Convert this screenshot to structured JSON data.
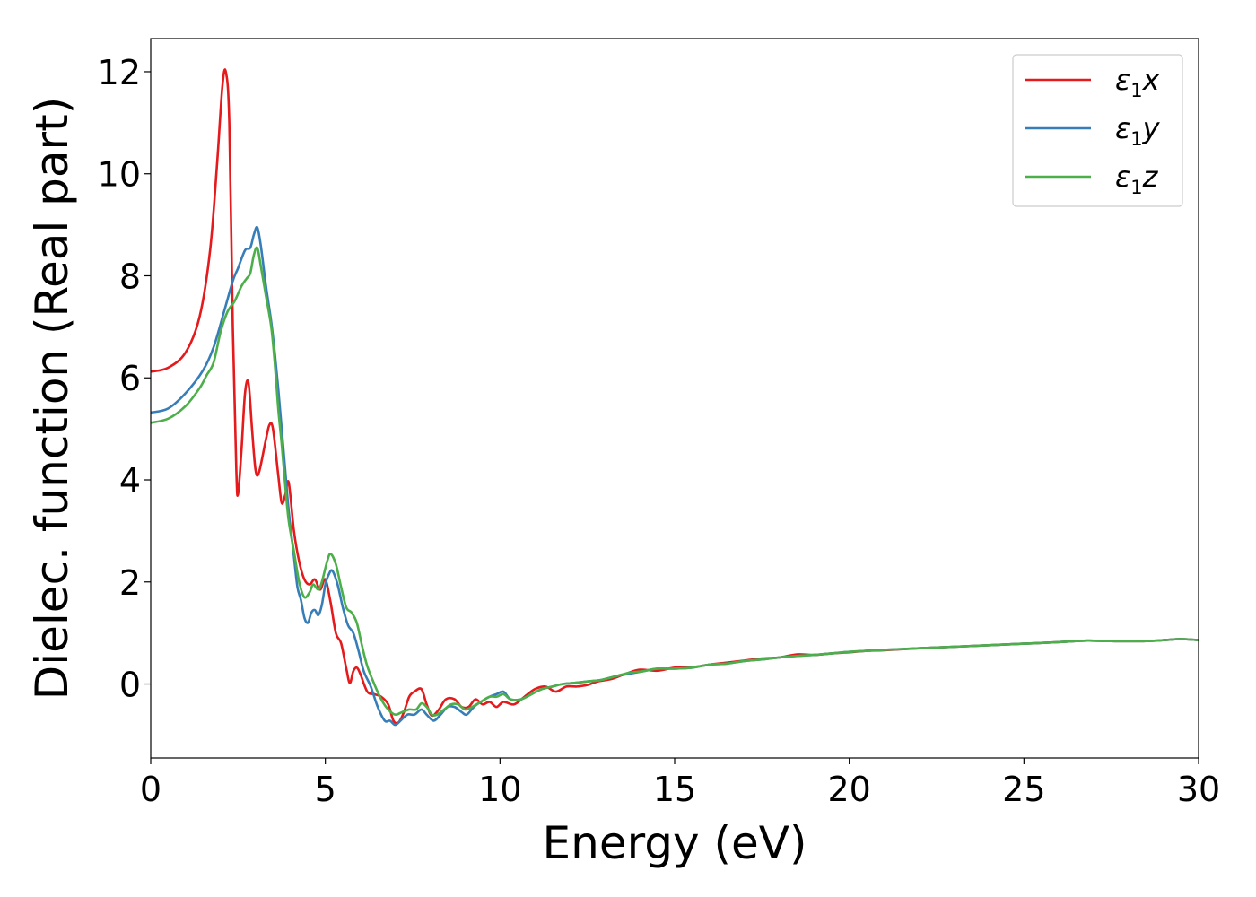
{
  "chart_data": {
    "type": "line",
    "xlabel": "Energy (eV)",
    "ylabel": "Dielec. function (Real part)",
    "xlim": [
      0,
      30
    ],
    "ylim": [
      -1.45,
      12.65
    ],
    "xticks": [
      "0",
      "5",
      "10",
      "15",
      "20",
      "25",
      "30"
    ],
    "yticks": [
      "0",
      "2",
      "4",
      "6",
      "8",
      "10",
      "12"
    ],
    "grid": false,
    "legend_position": "top-right",
    "series": [
      {
        "name": "ε1x",
        "legend": {
          "base": "ε",
          "sub": "1",
          "axis": "x"
        },
        "color": "#e41a1c",
        "points": [
          [
            0,
            6.12
          ],
          [
            0.5,
            6.2
          ],
          [
            1.0,
            6.5
          ],
          [
            1.4,
            7.2
          ],
          [
            1.7,
            8.5
          ],
          [
            1.9,
            10.2
          ],
          [
            2.05,
            11.7
          ],
          [
            2.15,
            12.0
          ],
          [
            2.25,
            11.0
          ],
          [
            2.35,
            7.0
          ],
          [
            2.45,
            4.2
          ],
          [
            2.5,
            3.72
          ],
          [
            2.6,
            4.6
          ],
          [
            2.7,
            5.7
          ],
          [
            2.8,
            5.9
          ],
          [
            2.9,
            5.0
          ],
          [
            3.0,
            4.2
          ],
          [
            3.1,
            4.15
          ],
          [
            3.3,
            4.8
          ],
          [
            3.4,
            5.08
          ],
          [
            3.5,
            5.0
          ],
          [
            3.65,
            4.1
          ],
          [
            3.75,
            3.55
          ],
          [
            3.85,
            3.7
          ],
          [
            3.95,
            3.95
          ],
          [
            4.1,
            3.0
          ],
          [
            4.25,
            2.4
          ],
          [
            4.4,
            2.05
          ],
          [
            4.55,
            1.95
          ],
          [
            4.7,
            2.05
          ],
          [
            4.85,
            1.85
          ],
          [
            5.0,
            2.05
          ],
          [
            5.15,
            1.6
          ],
          [
            5.3,
            1.0
          ],
          [
            5.45,
            0.8
          ],
          [
            5.6,
            0.3
          ],
          [
            5.7,
            0.02
          ],
          [
            5.8,
            0.25
          ],
          [
            5.9,
            0.32
          ],
          [
            6.0,
            0.2
          ],
          [
            6.2,
            -0.15
          ],
          [
            6.4,
            -0.2
          ],
          [
            6.6,
            -0.25
          ],
          [
            6.8,
            -0.4
          ],
          [
            6.95,
            -0.72
          ],
          [
            7.1,
            -0.75
          ],
          [
            7.25,
            -0.55
          ],
          [
            7.4,
            -0.25
          ],
          [
            7.55,
            -0.15
          ],
          [
            7.75,
            -0.1
          ],
          [
            7.9,
            -0.4
          ],
          [
            8.05,
            -0.62
          ],
          [
            8.25,
            -0.5
          ],
          [
            8.45,
            -0.3
          ],
          [
            8.7,
            -0.3
          ],
          [
            8.9,
            -0.45
          ],
          [
            9.1,
            -0.45
          ],
          [
            9.3,
            -0.3
          ],
          [
            9.5,
            -0.4
          ],
          [
            9.7,
            -0.35
          ],
          [
            9.9,
            -0.45
          ],
          [
            10.1,
            -0.35
          ],
          [
            10.4,
            -0.4
          ],
          [
            10.7,
            -0.25
          ],
          [
            11.0,
            -0.1
          ],
          [
            11.3,
            -0.05
          ],
          [
            11.6,
            -0.15
          ],
          [
            11.9,
            -0.05
          ],
          [
            12.2,
            -0.05
          ],
          [
            12.5,
            -0.02
          ],
          [
            12.8,
            0.05
          ],
          [
            13.2,
            0.1
          ],
          [
            13.6,
            0.2
          ],
          [
            14.0,
            0.28
          ],
          [
            14.5,
            0.26
          ],
          [
            15.0,
            0.32
          ],
          [
            15.5,
            0.33
          ],
          [
            16.0,
            0.38
          ],
          [
            16.5,
            0.42
          ],
          [
            17.0,
            0.46
          ],
          [
            17.5,
            0.5
          ],
          [
            18.0,
            0.52
          ],
          [
            18.5,
            0.58
          ],
          [
            19.0,
            0.57
          ],
          [
            19.5,
            0.6
          ],
          [
            20.0,
            0.62
          ],
          [
            20.5,
            0.65
          ],
          [
            21.0,
            0.66
          ],
          [
            22.0,
            0.7
          ],
          [
            23.0,
            0.73
          ],
          [
            24.0,
            0.76
          ],
          [
            25.0,
            0.79
          ],
          [
            26.0,
            0.82
          ],
          [
            26.8,
            0.85
          ],
          [
            27.5,
            0.84
          ],
          [
            28.5,
            0.84
          ],
          [
            29.2,
            0.87
          ],
          [
            29.5,
            0.88
          ],
          [
            30.0,
            0.86
          ]
        ]
      },
      {
        "name": "ε1y",
        "legend": {
          "base": "ε",
          "sub": "1",
          "axis": "y"
        },
        "color": "#377eb8",
        "points": [
          [
            0,
            5.32
          ],
          [
            0.5,
            5.4
          ],
          [
            1.0,
            5.7
          ],
          [
            1.5,
            6.15
          ],
          [
            1.8,
            6.6
          ],
          [
            2.1,
            7.3
          ],
          [
            2.35,
            7.9
          ],
          [
            2.5,
            8.15
          ],
          [
            2.7,
            8.5
          ],
          [
            2.85,
            8.55
          ],
          [
            2.95,
            8.8
          ],
          [
            3.05,
            8.95
          ],
          [
            3.15,
            8.6
          ],
          [
            3.3,
            7.8
          ],
          [
            3.45,
            7.1
          ],
          [
            3.55,
            6.5
          ],
          [
            3.65,
            5.8
          ],
          [
            3.75,
            5.0
          ],
          [
            3.85,
            4.2
          ],
          [
            3.95,
            3.4
          ],
          [
            4.1,
            2.5
          ],
          [
            4.2,
            1.9
          ],
          [
            4.3,
            1.65
          ],
          [
            4.4,
            1.3
          ],
          [
            4.5,
            1.2
          ],
          [
            4.6,
            1.4
          ],
          [
            4.7,
            1.45
          ],
          [
            4.8,
            1.35
          ],
          [
            4.9,
            1.55
          ],
          [
            5.0,
            1.95
          ],
          [
            5.1,
            2.15
          ],
          [
            5.2,
            2.22
          ],
          [
            5.35,
            1.95
          ],
          [
            5.5,
            1.5
          ],
          [
            5.65,
            1.15
          ],
          [
            5.8,
            1.0
          ],
          [
            5.95,
            0.65
          ],
          [
            6.1,
            0.25
          ],
          [
            6.3,
            -0.05
          ],
          [
            6.5,
            -0.45
          ],
          [
            6.7,
            -0.72
          ],
          [
            6.85,
            -0.72
          ],
          [
            7.0,
            -0.8
          ],
          [
            7.15,
            -0.72
          ],
          [
            7.35,
            -0.6
          ],
          [
            7.55,
            -0.6
          ],
          [
            7.75,
            -0.5
          ],
          [
            7.9,
            -0.6
          ],
          [
            8.1,
            -0.72
          ],
          [
            8.3,
            -0.6
          ],
          [
            8.5,
            -0.45
          ],
          [
            8.7,
            -0.45
          ],
          [
            8.9,
            -0.55
          ],
          [
            9.05,
            -0.6
          ],
          [
            9.25,
            -0.45
          ],
          [
            9.45,
            -0.35
          ],
          [
            9.7,
            -0.25
          ],
          [
            9.9,
            -0.2
          ],
          [
            10.1,
            -0.15
          ],
          [
            10.3,
            -0.3
          ],
          [
            10.6,
            -0.3
          ],
          [
            10.9,
            -0.2
          ],
          [
            11.2,
            -0.1
          ],
          [
            11.5,
            -0.05
          ],
          [
            11.8,
            0.0
          ],
          [
            12.1,
            0.02
          ],
          [
            12.5,
            0.05
          ],
          [
            12.9,
            0.08
          ],
          [
            13.3,
            0.15
          ],
          [
            13.7,
            0.2
          ],
          [
            14.1,
            0.25
          ],
          [
            14.5,
            0.3
          ],
          [
            15.0,
            0.3
          ],
          [
            15.5,
            0.32
          ],
          [
            16.0,
            0.38
          ],
          [
            16.5,
            0.4
          ],
          [
            17.0,
            0.45
          ],
          [
            17.5,
            0.48
          ],
          [
            18.0,
            0.52
          ],
          [
            18.5,
            0.55
          ],
          [
            19.0,
            0.57
          ],
          [
            19.5,
            0.6
          ],
          [
            20.0,
            0.63
          ],
          [
            20.5,
            0.65
          ],
          [
            21.0,
            0.67
          ],
          [
            22.0,
            0.7
          ],
          [
            23.0,
            0.73
          ],
          [
            24.0,
            0.76
          ],
          [
            25.0,
            0.79
          ],
          [
            26.0,
            0.82
          ],
          [
            26.8,
            0.85
          ],
          [
            27.5,
            0.84
          ],
          [
            28.5,
            0.84
          ],
          [
            29.2,
            0.87
          ],
          [
            29.5,
            0.88
          ],
          [
            30.0,
            0.86
          ]
        ]
      },
      {
        "name": "ε1z",
        "legend": {
          "base": "ε",
          "sub": "1",
          "axis": "z"
        },
        "color": "#4daf4a",
        "points": [
          [
            0,
            5.12
          ],
          [
            0.5,
            5.2
          ],
          [
            1.0,
            5.45
          ],
          [
            1.4,
            5.8
          ],
          [
            1.6,
            6.05
          ],
          [
            1.8,
            6.3
          ],
          [
            2.0,
            6.9
          ],
          [
            2.2,
            7.3
          ],
          [
            2.4,
            7.5
          ],
          [
            2.6,
            7.8
          ],
          [
            2.75,
            7.95
          ],
          [
            2.85,
            8.05
          ],
          [
            2.95,
            8.4
          ],
          [
            3.05,
            8.55
          ],
          [
            3.15,
            8.2
          ],
          [
            3.3,
            7.6
          ],
          [
            3.45,
            7.0
          ],
          [
            3.55,
            6.3
          ],
          [
            3.65,
            5.4
          ],
          [
            3.75,
            4.7
          ],
          [
            3.85,
            3.9
          ],
          [
            3.95,
            3.2
          ],
          [
            4.1,
            2.6
          ],
          [
            4.25,
            2.0
          ],
          [
            4.4,
            1.7
          ],
          [
            4.55,
            1.8
          ],
          [
            4.65,
            1.95
          ],
          [
            4.8,
            1.85
          ],
          [
            4.9,
            2.0
          ],
          [
            5.05,
            2.4
          ],
          [
            5.15,
            2.55
          ],
          [
            5.3,
            2.35
          ],
          [
            5.45,
            1.9
          ],
          [
            5.6,
            1.5
          ],
          [
            5.75,
            1.4
          ],
          [
            5.9,
            1.2
          ],
          [
            6.05,
            0.75
          ],
          [
            6.2,
            0.35
          ],
          [
            6.4,
            0.0
          ],
          [
            6.6,
            -0.3
          ],
          [
            6.8,
            -0.5
          ],
          [
            7.0,
            -0.6
          ],
          [
            7.2,
            -0.55
          ],
          [
            7.4,
            -0.5
          ],
          [
            7.6,
            -0.5
          ],
          [
            7.75,
            -0.38
          ],
          [
            7.9,
            -0.45
          ],
          [
            8.05,
            -0.6
          ],
          [
            8.2,
            -0.6
          ],
          [
            8.4,
            -0.5
          ],
          [
            8.6,
            -0.4
          ],
          [
            8.8,
            -0.4
          ],
          [
            9.0,
            -0.5
          ],
          [
            9.2,
            -0.45
          ],
          [
            9.45,
            -0.35
          ],
          [
            9.7,
            -0.25
          ],
          [
            9.9,
            -0.25
          ],
          [
            10.1,
            -0.2
          ],
          [
            10.3,
            -0.3
          ],
          [
            10.6,
            -0.3
          ],
          [
            10.9,
            -0.2
          ],
          [
            11.2,
            -0.1
          ],
          [
            11.5,
            -0.05
          ],
          [
            11.8,
            0.0
          ],
          [
            12.1,
            0.02
          ],
          [
            12.5,
            0.05
          ],
          [
            12.9,
            0.08
          ],
          [
            13.3,
            0.15
          ],
          [
            13.7,
            0.22
          ],
          [
            14.1,
            0.25
          ],
          [
            14.5,
            0.3
          ],
          [
            15.0,
            0.3
          ],
          [
            15.5,
            0.32
          ],
          [
            16.0,
            0.38
          ],
          [
            16.5,
            0.4
          ],
          [
            17.0,
            0.45
          ],
          [
            17.5,
            0.48
          ],
          [
            18.0,
            0.52
          ],
          [
            18.5,
            0.55
          ],
          [
            19.0,
            0.57
          ],
          [
            19.5,
            0.6
          ],
          [
            20.0,
            0.63
          ],
          [
            20.5,
            0.65
          ],
          [
            21.0,
            0.67
          ],
          [
            22.0,
            0.7
          ],
          [
            23.0,
            0.73
          ],
          [
            24.0,
            0.76
          ],
          [
            25.0,
            0.79
          ],
          [
            26.0,
            0.82
          ],
          [
            26.8,
            0.85
          ],
          [
            27.5,
            0.84
          ],
          [
            28.5,
            0.84
          ],
          [
            29.2,
            0.87
          ],
          [
            29.5,
            0.88
          ],
          [
            30.0,
            0.86
          ]
        ]
      }
    ]
  }
}
